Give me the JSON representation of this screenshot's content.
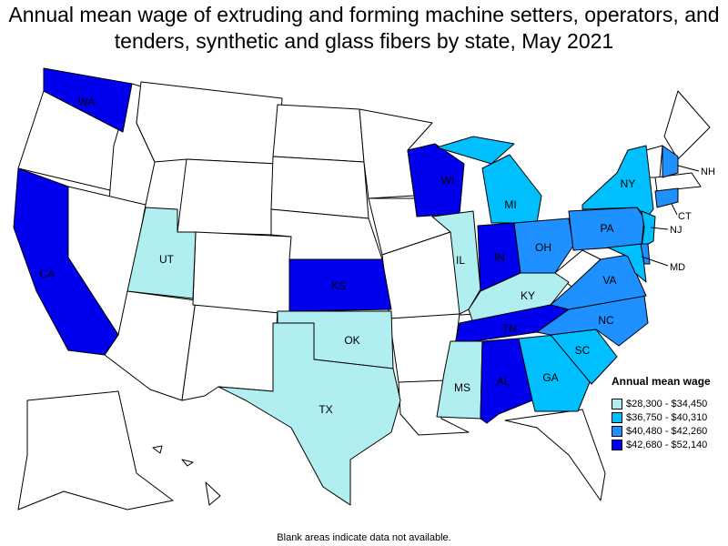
{
  "title": "Annual mean wage of extruding and forming machine setters, operators, and tenders, synthetic and glass fibers by state, May 2021",
  "footnote": "Blank areas indicate data not available.",
  "legend": {
    "title": "Annual mean wage",
    "bins": [
      {
        "label": "$28,300 - $34,450",
        "color": "#b0eef0"
      },
      {
        "label": "$36,750 - $40,310",
        "color": "#00bfff"
      },
      {
        "label": "$40,480 - $42,260",
        "color": "#1e90ff"
      },
      {
        "label": "$42,680 - $52,140",
        "color": "#0000ee"
      }
    ]
  },
  "no_data_color": "#ffffff",
  "states": {
    "WA": {
      "label": "WA",
      "bin": 3
    },
    "CA": {
      "label": "CA",
      "bin": 3
    },
    "UT": {
      "label": "UT",
      "bin": 0
    },
    "KS": {
      "label": "KS",
      "bin": 3
    },
    "OK": {
      "label": "OK",
      "bin": 0
    },
    "TX": {
      "label": "TX",
      "bin": 0
    },
    "WI": {
      "label": "WI",
      "bin": 3
    },
    "IL": {
      "label": "IL",
      "bin": 0
    },
    "MI": {
      "label": "MI",
      "bin": 1
    },
    "IN": {
      "label": "IN",
      "bin": 3
    },
    "OH": {
      "label": "OH",
      "bin": 2
    },
    "KY": {
      "label": "KY",
      "bin": 0
    },
    "TN": {
      "label": "TN",
      "bin": 3
    },
    "MS": {
      "label": "MS",
      "bin": 0
    },
    "AL": {
      "label": "AL",
      "bin": 3
    },
    "GA": {
      "label": "GA",
      "bin": 1
    },
    "SC": {
      "label": "SC",
      "bin": 1
    },
    "NC": {
      "label": "NC",
      "bin": 2
    },
    "VA": {
      "label": "VA",
      "bin": 2
    },
    "PA": {
      "label": "PA",
      "bin": 2
    },
    "NY": {
      "label": "NY",
      "bin": 1
    },
    "NJ": {
      "label": "NJ",
      "bin": 1
    },
    "MD": {
      "label": "MD",
      "bin": 1
    },
    "CT": {
      "label": "CT",
      "bin": 2
    },
    "NH": {
      "label": "NH",
      "bin": 2
    },
    "DE": {
      "label": "",
      "bin": 2
    }
  }
}
